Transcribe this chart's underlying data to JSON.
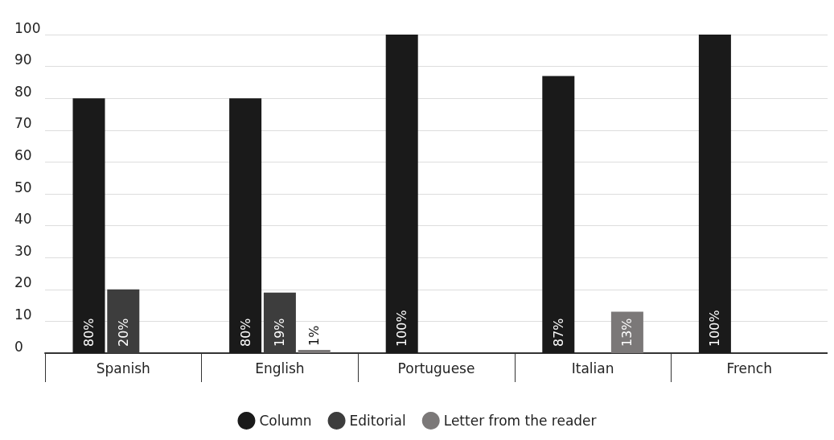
{
  "chart_data": {
    "type": "bar",
    "categories": [
      "Spanish",
      "English",
      "Portuguese",
      "Italian",
      "French"
    ],
    "series": [
      {
        "name": "Column",
        "color": "#1a1a1a",
        "values": [
          80,
          80,
          100,
          87,
          100
        ],
        "value_labels": [
          "80%",
          "80%",
          "100%",
          "87%",
          "100%"
        ]
      },
      {
        "name": "Editorial",
        "color": "#3d3d3d",
        "values": [
          20,
          19,
          null,
          null,
          null
        ],
        "value_labels": [
          "20%",
          "19%",
          null,
          null,
          null
        ]
      },
      {
        "name": "Letter from the reader",
        "color": "#7b7878",
        "values": [
          null,
          1,
          null,
          13,
          null
        ],
        "value_labels": [
          null,
          "1%",
          null,
          "13%",
          null
        ]
      }
    ],
    "ylim": [
      0,
      100
    ],
    "yticks": [
      0,
      10,
      20,
      30,
      40,
      50,
      60,
      70,
      80,
      90,
      100
    ],
    "grid": "y",
    "legend": "bottom"
  }
}
